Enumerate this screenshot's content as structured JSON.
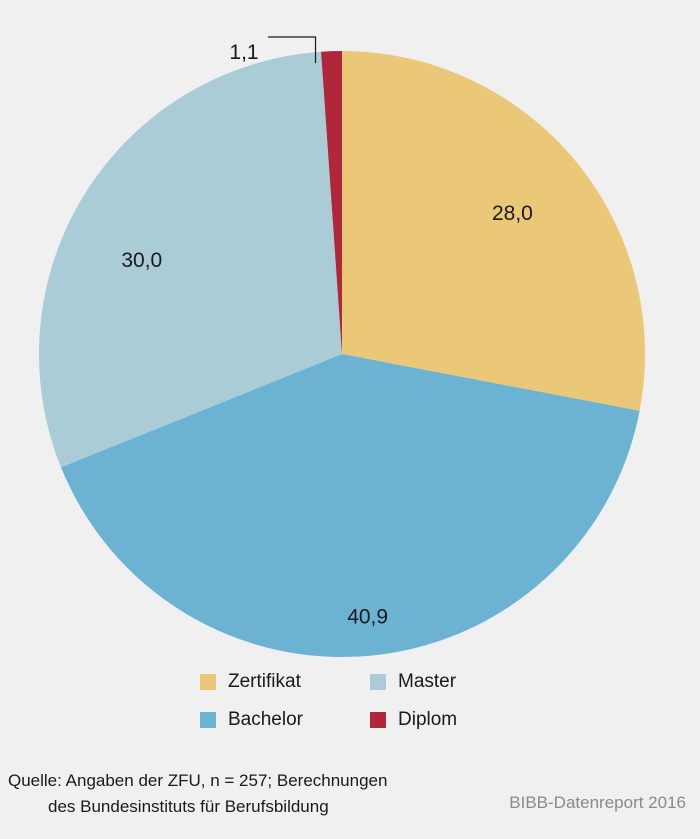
{
  "chart_data": {
    "type": "pie",
    "categories": [
      "Zertifikat",
      "Bachelor",
      "Master",
      "Diplom"
    ],
    "values": [
      28.0,
      40.9,
      30.0,
      1.1
    ],
    "value_labels": [
      "28,0",
      "40,9",
      "30,0",
      "1,1"
    ],
    "colors": [
      "#eac878",
      "#6cb3d3",
      "#a9ccd7",
      "#b0273a"
    ],
    "start_angle": "12 o'clock",
    "direction": "clockwise",
    "legend_position": "bottom",
    "legend": [
      {
        "label": "Zertifikat",
        "color": "#eac878"
      },
      {
        "label": "Master",
        "color": "#a9ccd7"
      },
      {
        "label": "Bachelor",
        "color": "#6cb3d3"
      },
      {
        "label": "Diplom",
        "color": "#b0273a"
      }
    ]
  },
  "source": {
    "line1": "Quelle: Angaben der ZFU, n = 257; Berechnungen",
    "line2": "des Bundesinstituts für Berufsbildung"
  },
  "credit": "BIBB-Datenreport 2016"
}
